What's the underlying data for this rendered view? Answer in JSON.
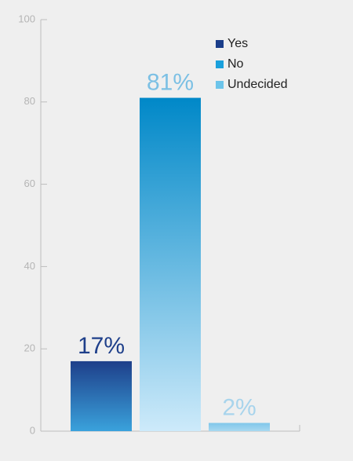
{
  "chart_data": {
    "type": "bar",
    "series": [
      {
        "name": "Yes",
        "color": "#1a3d8a",
        "gradient": [
          "#1e3f8a",
          "#3aa2dc"
        ],
        "label_color": "#1e3f8a",
        "values": [
          17
        ],
        "value_labels": [
          "17%"
        ]
      },
      {
        "name": "No",
        "color": "#1aa0dc",
        "gradient": [
          "#0088c8",
          "#cdeafa"
        ],
        "label_color": "#7cc0e4",
        "values": [
          81
        ],
        "value_labels": [
          "81%"
        ]
      },
      {
        "name": "Undecided",
        "color": "#6cc4ea",
        "gradient": [
          "#7fc6ea",
          "#a8d8f0"
        ],
        "label_color": "#a8d4ec",
        "values": [
          2
        ],
        "value_labels": [
          "2%"
        ]
      }
    ],
    "ylim": [
      0,
      100
    ],
    "yticks": [
      0,
      20,
      40,
      60,
      80,
      100
    ]
  }
}
